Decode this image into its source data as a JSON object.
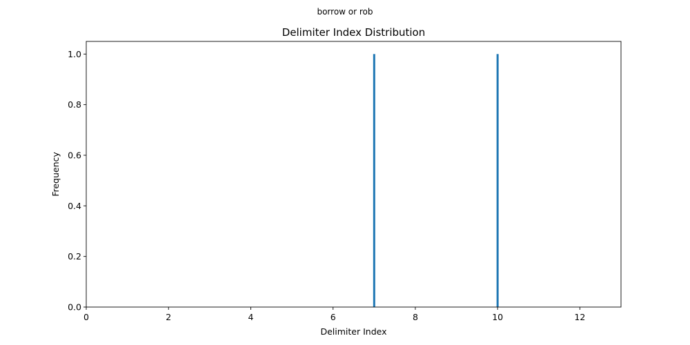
{
  "figure": {
    "suptitle": "borrow or rob"
  },
  "chart_data": {
    "type": "bar",
    "title": "Delimiter Index Distribution",
    "xlabel": "Delimiter Index",
    "ylabel": "Frequency",
    "x": [
      7,
      10
    ],
    "values": [
      1,
      1
    ],
    "xlim": [
      0,
      13
    ],
    "ylim": [
      0,
      1.05
    ],
    "xticks": [
      0,
      2,
      4,
      6,
      8,
      10,
      12
    ],
    "yticks": [
      0.0,
      0.2,
      0.4,
      0.6,
      0.8,
      1.0
    ],
    "ytick_labels": [
      "0.0",
      "0.2",
      "0.4",
      "0.6",
      "0.8",
      "1.0"
    ],
    "bar_color": "#1f77b4",
    "grid": false,
    "legend": "none"
  }
}
